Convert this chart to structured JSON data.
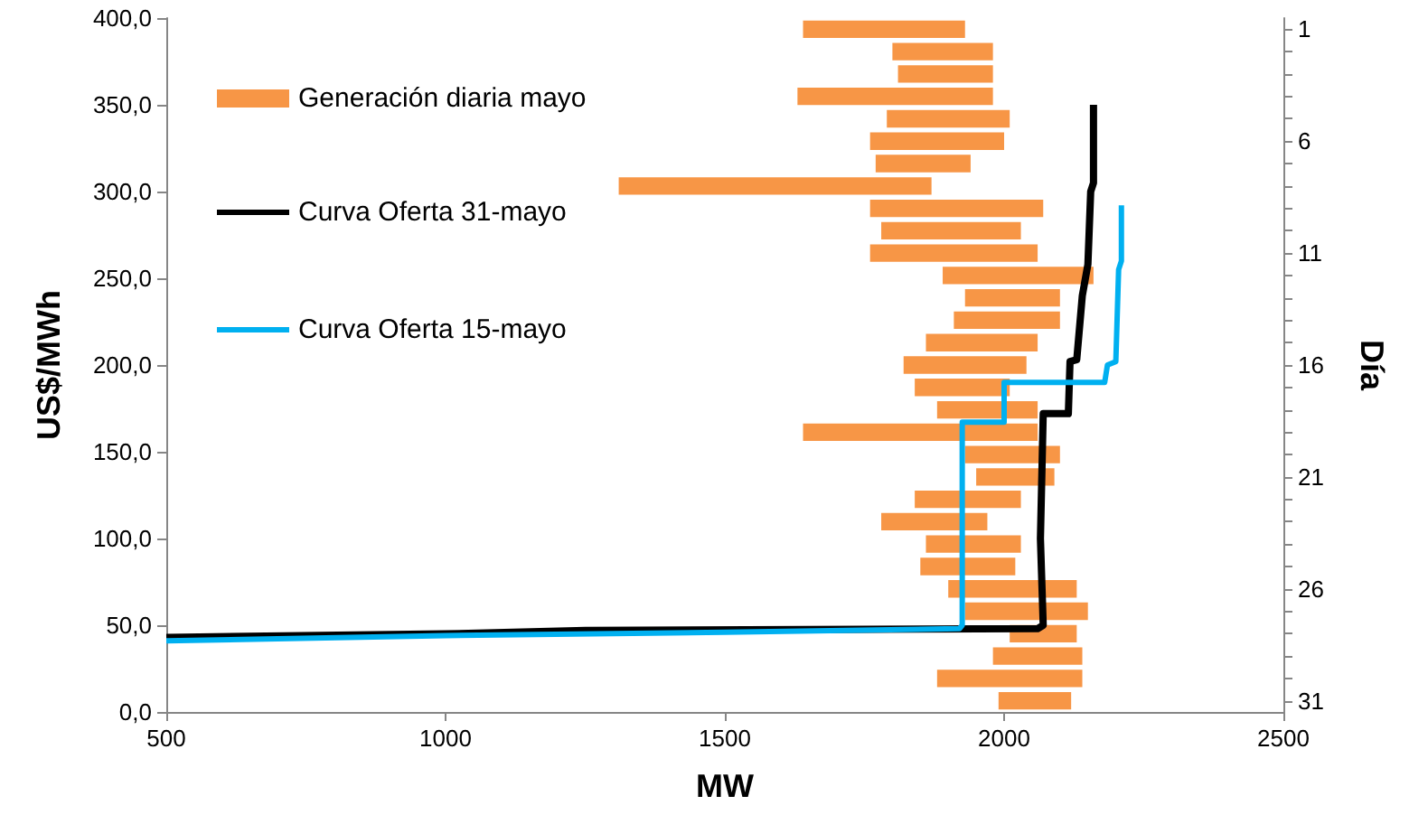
{
  "chart_data": [
    {
      "type": "line",
      "xlabel": "MW",
      "ylabel": "US$/MWh",
      "xlim": [
        500,
        2500
      ],
      "xticks": [
        500,
        1000,
        1500,
        2000,
        2500
      ],
      "ylim": [
        0,
        400
      ],
      "yticks": [
        {
          "value": 0,
          "label": "0,0"
        },
        {
          "value": 50,
          "label": "50,0"
        },
        {
          "value": 100,
          "label": "100,0"
        },
        {
          "value": 150,
          "label": "150,0"
        },
        {
          "value": 200,
          "label": "200,0"
        },
        {
          "value": 250,
          "label": "250,0"
        },
        {
          "value": 300,
          "label": "300,0"
        },
        {
          "value": 350,
          "label": "350,0"
        },
        {
          "value": 400,
          "label": "400,0"
        }
      ],
      "legend": "top left",
      "series": [
        {
          "name": "Curva Oferta 31-mayo",
          "color": "#000000",
          "x": [
            500,
            1000,
            1250,
            2060,
            2070,
            2065,
            2070,
            2115,
            2118,
            2130,
            2140,
            2150,
            2155,
            2160,
            2160
          ],
          "values": [
            43,
            45,
            47,
            48,
            50,
            100,
            172,
            172,
            202,
            203,
            240,
            258,
            300,
            305,
            350
          ]
        },
        {
          "name": "Curva Oferta 15-mayo",
          "color": "#00b0f0",
          "x": [
            500,
            1000,
            1500,
            1920,
            1925,
            1925,
            2000,
            2000,
            2180,
            2185,
            2200,
            2205,
            2210,
            2210
          ],
          "values": [
            41,
            44,
            46,
            48,
            50,
            167,
            167,
            190,
            190,
            200,
            202,
            255,
            260,
            292
          ]
        }
      ]
    },
    {
      "type": "bar",
      "orientation": "horizontal",
      "ylabel": "Día",
      "tick_labels": "y",
      "xlim": [
        500,
        2500
      ],
      "xticks": [
        500,
        1000,
        1500,
        2000,
        2500
      ],
      "categories": [
        "1",
        null,
        null,
        null,
        null,
        "6",
        null,
        null,
        null,
        null,
        "11",
        null,
        null,
        null,
        null,
        "16",
        null,
        null,
        null,
        null,
        "21",
        null,
        null,
        null,
        null,
        "26",
        null,
        null,
        null,
        null,
        "31"
      ],
      "legend": "top left",
      "series": [
        {
          "name": "Generación diaria mayo",
          "color": "#f79646",
          "base": [
            1640,
            1800,
            1810,
            1630,
            1790,
            1760,
            1770,
            1310,
            1760,
            1780,
            1760,
            1890,
            1930,
            1910,
            1860,
            1820,
            1840,
            1880,
            1640,
            1930,
            1950,
            1840,
            1780,
            1860,
            1850,
            1900,
            1930,
            2010,
            1980,
            1880,
            1990
          ],
          "values": [
            290,
            180,
            170,
            350,
            220,
            240,
            170,
            560,
            310,
            250,
            300,
            270,
            170,
            190,
            200,
            220,
            170,
            180,
            420,
            170,
            140,
            190,
            190,
            170,
            170,
            230,
            220,
            120,
            160,
            260,
            130
          ]
        }
      ]
    }
  ]
}
